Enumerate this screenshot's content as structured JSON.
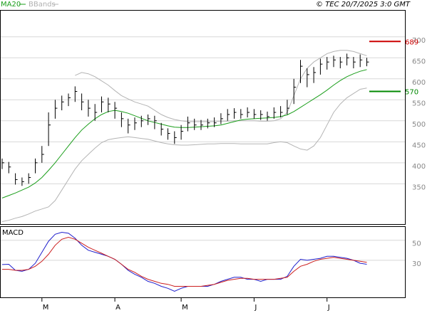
{
  "chart_data": [
    {
      "type": "ohlc",
      "credit": "© TEC 20/7/2025 3:0 GMT",
      "categories": [
        null,
        null,
        null,
        null,
        null,
        null,
        "M",
        null,
        null,
        null,
        null,
        null,
        null,
        null,
        null,
        null,
        null,
        "A",
        null,
        null,
        null,
        null,
        null,
        null,
        null,
        null,
        null,
        "M",
        null,
        null,
        null,
        null,
        null,
        null,
        null,
        null,
        null,
        null,
        "J",
        null,
        null,
        null,
        null,
        null,
        null,
        null,
        null,
        null,
        null,
        "J",
        null,
        null,
        null,
        null,
        null,
        null
      ],
      "high": [
        410,
        402,
        375,
        365,
        375,
        410,
        440,
        520,
        550,
        560,
        565,
        582,
        565,
        550,
        540,
        558,
        555,
        545,
        520,
        505,
        508,
        512,
        515,
        512,
        495,
        482,
        475,
        490,
        510,
        505,
        502,
        505,
        508,
        518,
        528,
        530,
        528,
        532,
        528,
        525,
        522,
        532,
        535,
        550,
        600,
        645,
        625,
        628,
        648,
        652,
        655,
        652,
        660,
        652,
        658,
        650
      ],
      "low": [
        385,
        375,
        348,
        345,
        350,
        375,
        400,
        440,
        505,
        525,
        535,
        545,
        525,
        510,
        500,
        520,
        520,
        505,
        485,
        470,
        478,
        485,
        490,
        480,
        465,
        455,
        445,
        455,
        475,
        478,
        478,
        482,
        485,
        492,
        500,
        505,
        505,
        508,
        505,
        502,
        500,
        505,
        508,
        515,
        540,
        590,
        580,
        590,
        610,
        622,
        628,
        625,
        632,
        625,
        628,
        630
      ],
      "close": [
        400,
        390,
        360,
        355,
        365,
        400,
        420,
        490,
        530,
        545,
        555,
        570,
        545,
        530,
        520,
        545,
        540,
        530,
        505,
        490,
        495,
        500,
        505,
        500,
        480,
        470,
        460,
        475,
        495,
        490,
        490,
        495,
        495,
        505,
        515,
        520,
        515,
        520,
        515,
        515,
        510,
        520,
        520,
        530,
        580,
        630,
        610,
        615,
        635,
        640,
        645,
        640,
        650,
        640,
        645,
        640
      ],
      "bar_color": "#000000",
      "series": [
        {
          "name": "MA20",
          "color": "#1a9e1a",
          "values": [
            316,
            322,
            328,
            335,
            342,
            352,
            365,
            382,
            400,
            420,
            440,
            460,
            478,
            492,
            505,
            515,
            522,
            525,
            522,
            518,
            512,
            506,
            500,
            496,
            492,
            488,
            485,
            484,
            484,
            485,
            486,
            487,
            488,
            490,
            494,
            498,
            502,
            504,
            505,
            506,
            507,
            508,
            510,
            514,
            522,
            532,
            542,
            552,
            562,
            573,
            585,
            596,
            605,
            612,
            618,
            622
          ]
        },
        {
          "name": "BBands",
          "color": "#b4b4b4",
          "upper": [
            null,
            null,
            null,
            null,
            null,
            null,
            null,
            null,
            null,
            null,
            null,
            608,
            615,
            612,
            605,
            595,
            585,
            572,
            560,
            552,
            545,
            540,
            535,
            525,
            515,
            508,
            503,
            500,
            498,
            498,
            498,
            498,
            498,
            499,
            499,
            500,
            500,
            500,
            500,
            499,
            499,
            500,
            505,
            520,
            560,
            600,
            625,
            640,
            650,
            660,
            665,
            668,
            668,
            665,
            660,
            655
          ],
          "lower": [
            260,
            263,
            268,
            272,
            278,
            285,
            290,
            295,
            310,
            335,
            360,
            385,
            405,
            420,
            435,
            448,
            455,
            458,
            460,
            462,
            460,
            458,
            456,
            452,
            448,
            445,
            443,
            442,
            442,
            443,
            444,
            445,
            445,
            446,
            446,
            446,
            445,
            445,
            445,
            445,
            445,
            448,
            450,
            448,
            440,
            433,
            430,
            440,
            460,
            490,
            520,
            540,
            555,
            565,
            575,
            578
          ]
        }
      ],
      "levels": [
        {
          "value": 689,
          "color": "#cc0000"
        },
        {
          "value": 570,
          "color": "#008800"
        }
      ],
      "ylim": [
        254,
        764
      ],
      "yticks": [
        350,
        400,
        450,
        500,
        550,
        600,
        650,
        700
      ],
      "grid": true
    },
    {
      "type": "line",
      "title": "MACD",
      "series": [
        {
          "color": "#1f1fcc",
          "values": [
            25.7,
            26,
            20,
            19,
            21,
            27,
            38,
            49,
            56,
            58,
            57,
            52,
            45,
            40,
            38,
            36,
            34,
            31,
            26,
            20,
            16,
            13,
            9,
            7,
            4,
            2,
            -1,
            2,
            4,
            4,
            4,
            4,
            6,
            9,
            11,
            13,
            13,
            11,
            11,
            9,
            11,
            11,
            11,
            14,
            24,
            31,
            30,
            31,
            32,
            34,
            34,
            33,
            32,
            30,
            27,
            26
          ]
        },
        {
          "color": "#cc1f1f",
          "values": [
            21,
            21,
            20,
            20,
            21,
            24,
            29,
            36,
            45,
            51,
            53,
            51,
            47,
            43,
            40,
            37,
            34,
            31,
            26,
            21,
            18,
            14,
            11,
            9,
            7,
            6,
            4,
            4,
            4,
            4,
            4,
            5,
            6,
            8,
            10,
            11,
            12,
            12,
            11,
            11,
            11,
            11,
            12,
            13,
            19,
            24,
            26,
            29,
            31,
            32,
            33,
            32,
            31,
            30,
            29,
            28
          ]
        }
      ],
      "ylim": [
        -7,
        64
      ],
      "yticks": [
        30,
        50
      ],
      "grid": true
    }
  ]
}
